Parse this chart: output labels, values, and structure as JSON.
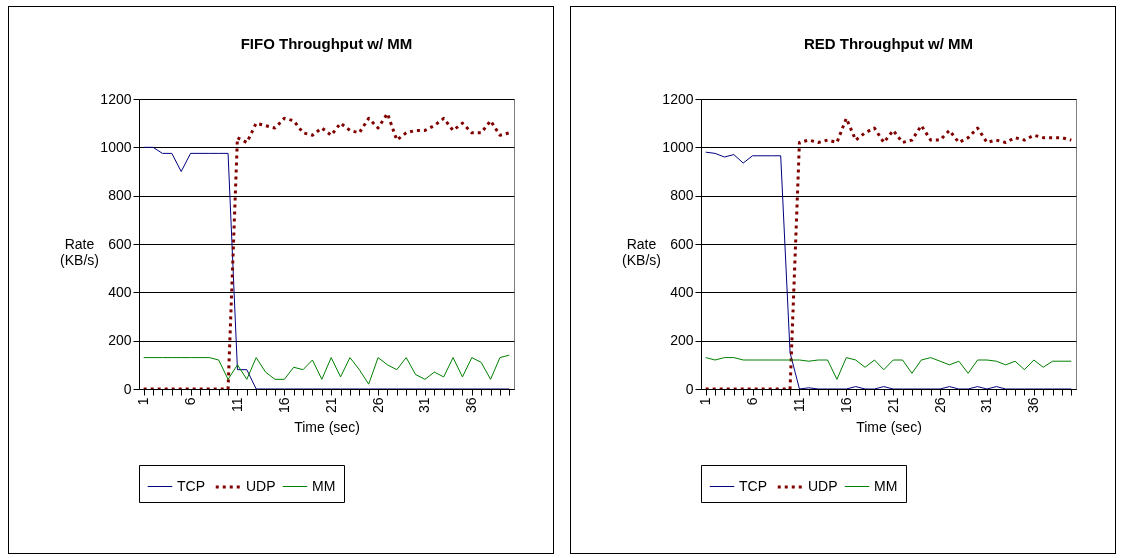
{
  "chart_data": [
    {
      "type": "line",
      "title": "FIFO Throughput w/ MM",
      "xlabel": "Time (sec)",
      "ylabel": "Rate (KB/s)",
      "categories": [
        "1",
        null,
        null,
        null,
        null,
        "6",
        null,
        null,
        null,
        null,
        "11",
        null,
        null,
        null,
        null,
        "16",
        null,
        null,
        null,
        null,
        "21",
        null,
        null,
        null,
        null,
        "26",
        null,
        null,
        null,
        null,
        "31",
        null,
        null,
        null,
        null,
        "36",
        null,
        null,
        null,
        null
      ],
      "ylim": [
        0,
        1200
      ],
      "yticks": [
        0,
        200,
        400,
        600,
        800,
        1000,
        1200
      ],
      "grid": "y",
      "legend": "bottom",
      "series": [
        {
          "name": "TCP",
          "color": "#000080",
          "line_style": "solid",
          "values": [
            1000,
            1000,
            975,
            975,
            900,
            975,
            975,
            975,
            975,
            975,
            80,
            80,
            0,
            0,
            0,
            0,
            0,
            0,
            0,
            0,
            0,
            0,
            0,
            0,
            0,
            0,
            0,
            0,
            0,
            0,
            0,
            0,
            0,
            0,
            0,
            0,
            0,
            0,
            0,
            0
          ]
        },
        {
          "name": "UDP",
          "color": "#800000",
          "line_style": "dotted",
          "values": [
            0,
            0,
            0,
            0,
            0,
            0,
            0,
            0,
            0,
            0,
            1040,
            1020,
            1100,
            1090,
            1080,
            1120,
            1110,
            1060,
            1050,
            1080,
            1050,
            1100,
            1070,
            1060,
            1120,
            1080,
            1140,
            1030,
            1060,
            1070,
            1070,
            1090,
            1120,
            1070,
            1100,
            1060,
            1060,
            1110,
            1050,
            1060
          ]
        },
        {
          "name": "MM",
          "color": "#008000",
          "line_style": "solid",
          "values": [
            130,
            130,
            130,
            130,
            130,
            130,
            130,
            130,
            120,
            40,
            100,
            40,
            130,
            70,
            40,
            40,
            90,
            80,
            120,
            40,
            130,
            50,
            130,
            80,
            20,
            130,
            100,
            80,
            130,
            60,
            40,
            70,
            50,
            130,
            50,
            130,
            110,
            40,
            130,
            140
          ]
        }
      ]
    },
    {
      "type": "line",
      "title": "RED Throughput w/ MM",
      "xlabel": "Time (sec)",
      "ylabel": "Rate (KB/s)",
      "categories": [
        "1",
        null,
        null,
        null,
        null,
        "6",
        null,
        null,
        null,
        null,
        "11",
        null,
        null,
        null,
        null,
        "16",
        null,
        null,
        null,
        null,
        "21",
        null,
        null,
        null,
        null,
        "26",
        null,
        null,
        null,
        null,
        "31",
        null,
        null,
        null,
        null,
        "36",
        null,
        null,
        null,
        null
      ],
      "ylim": [
        0,
        1200
      ],
      "yticks": [
        0,
        200,
        400,
        600,
        800,
        1000,
        1200
      ],
      "grid": "y",
      "legend": "bottom",
      "series": [
        {
          "name": "TCP",
          "color": "#000080",
          "line_style": "solid",
          "values": [
            980,
            975,
            960,
            970,
            935,
            965,
            965,
            965,
            965,
            150,
            0,
            5,
            0,
            0,
            0,
            0,
            10,
            0,
            0,
            10,
            0,
            0,
            0,
            0,
            0,
            0,
            10,
            0,
            0,
            10,
            0,
            10,
            0,
            0,
            0,
            0,
            0,
            0,
            0,
            0
          ]
        },
        {
          "name": "UDP",
          "color": "#800000",
          "line_style": "dotted",
          "values": [
            0,
            0,
            0,
            0,
            0,
            0,
            0,
            0,
            0,
            0,
            1020,
            1030,
            1020,
            1030,
            1020,
            1120,
            1030,
            1060,
            1080,
            1020,
            1070,
            1020,
            1030,
            1090,
            1030,
            1030,
            1070,
            1020,
            1040,
            1080,
            1020,
            1030,
            1020,
            1040,
            1030,
            1050,
            1040,
            1040,
            1040,
            1030
          ]
        },
        {
          "name": "MM",
          "color": "#008000",
          "line_style": "solid",
          "values": [
            130,
            120,
            130,
            130,
            120,
            120,
            120,
            120,
            120,
            120,
            120,
            115,
            120,
            120,
            40,
            130,
            120,
            90,
            120,
            80,
            120,
            120,
            65,
            120,
            130,
            115,
            100,
            115,
            65,
            120,
            120,
            115,
            100,
            115,
            80,
            120,
            90,
            115,
            115,
            115
          ]
        }
      ]
    }
  ]
}
